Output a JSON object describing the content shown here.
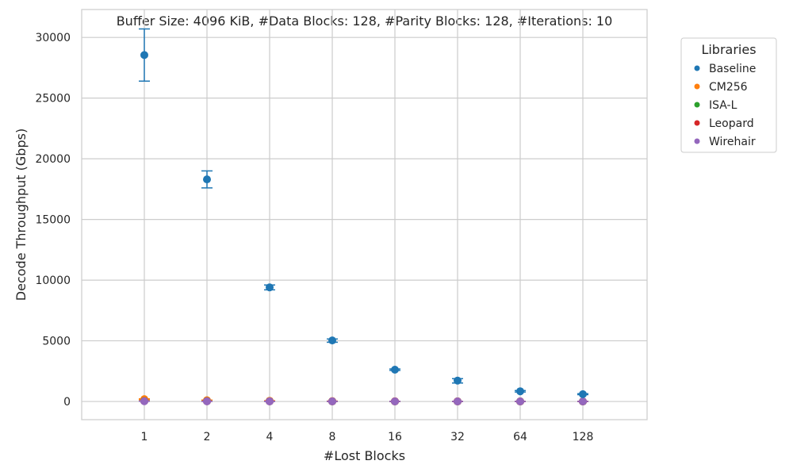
{
  "chart_data": {
    "type": "scatter",
    "title": "Buffer Size: 4096 KiB, #Data Blocks: 128, #Parity Blocks: 128, #Iterations: 10",
    "xlabel": "#Lost Blocks",
    "ylabel": "Decode Throughput (Gbps)",
    "categories": [
      "1",
      "2",
      "4",
      "8",
      "16",
      "32",
      "64",
      "128"
    ],
    "ylim": [
      -1500,
      32300
    ],
    "yticks": [
      "0",
      "5000",
      "10000",
      "15000",
      "20000",
      "25000",
      "30000"
    ],
    "grid": true,
    "legend": {
      "title": "Libraries",
      "placement": "outside-top-right"
    },
    "series": [
      {
        "name": "Baseline",
        "color": "#1f77b4",
        "values": [
          28550,
          18300,
          9400,
          5030,
          2620,
          1720,
          840,
          600
        ],
        "err_low": [
          26400,
          17600,
          9200,
          4880,
          2560,
          1520,
          780,
          560
        ],
        "err_high": [
          30700,
          19000,
          9600,
          5150,
          2680,
          1880,
          900,
          640
        ]
      },
      {
        "name": "CM256",
        "color": "#ff7f0e",
        "values": [
          190,
          100,
          55,
          30,
          15,
          8,
          4,
          2
        ],
        "err_low": [
          160,
          85,
          45,
          25,
          12,
          6,
          3,
          1
        ],
        "err_high": [
          220,
          115,
          65,
          35,
          18,
          10,
          5,
          3
        ]
      },
      {
        "name": "ISA-L",
        "color": "#2ca02c",
        "values": [
          40,
          25,
          15,
          8,
          5,
          3,
          2,
          1
        ],
        "err_low": [
          35,
          20,
          12,
          6,
          4,
          2,
          1,
          0
        ],
        "err_high": [
          45,
          30,
          18,
          10,
          6,
          4,
          3,
          2
        ]
      },
      {
        "name": "Leopard",
        "color": "#d62728",
        "values": [
          30,
          20,
          15,
          10,
          8,
          6,
          5,
          4
        ],
        "err_low": [
          25,
          15,
          12,
          8,
          6,
          5,
          4,
          3
        ],
        "err_high": [
          35,
          25,
          18,
          12,
          10,
          7,
          6,
          5
        ]
      },
      {
        "name": "Wirehair",
        "color": "#9467bd",
        "values": [
          20,
          15,
          10,
          8,
          6,
          5,
          4,
          3
        ],
        "err_low": [
          15,
          12,
          8,
          6,
          5,
          4,
          3,
          2
        ],
        "err_high": [
          25,
          18,
          12,
          10,
          7,
          6,
          5,
          4
        ]
      }
    ]
  }
}
